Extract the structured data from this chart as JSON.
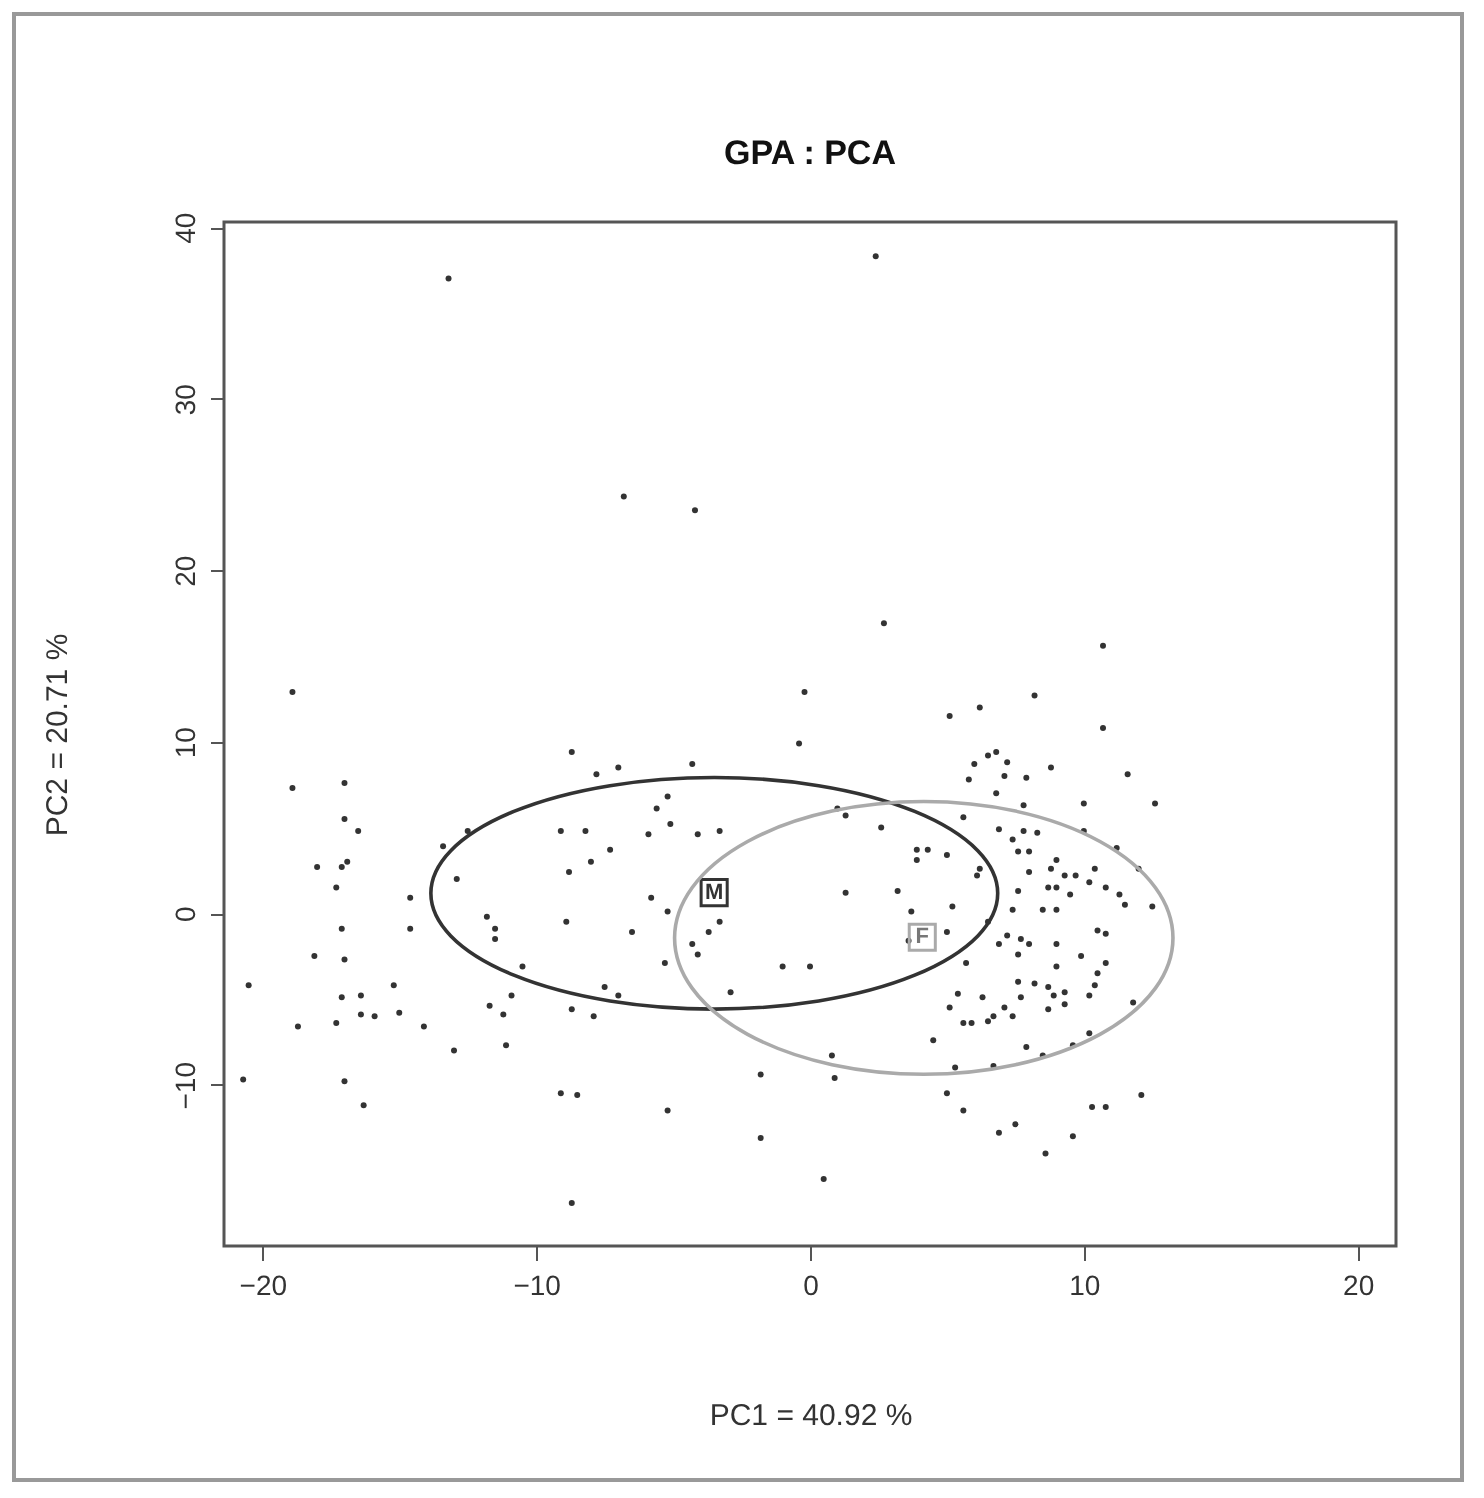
{
  "chart_data": {
    "type": "scatter",
    "title": "GPA : PCA",
    "xlabel": "PC1 = 40.92 %",
    "ylabel": "PC2 = 20.71 %",
    "xlim": [
      -21.4,
      21.4
    ],
    "ylim": [
      -19.4,
      40.3
    ],
    "xticks": [
      -20,
      -10,
      0,
      10,
      20
    ],
    "yticks": [
      -10,
      0,
      10,
      20,
      30,
      40
    ],
    "grid": false,
    "series": [
      {
        "color": "#333333",
        "marker": "circle",
        "x": [
          -13.2,
          -6.8,
          -4.2,
          -18.9,
          2.4,
          2.7,
          10.7,
          -0.2,
          8.2,
          6.2,
          5.1,
          -18.9,
          -17.0,
          -17.0,
          -16.5,
          -18.0,
          -17.1,
          -16.9,
          -17.3,
          -14.6,
          -14.6,
          -17.1,
          -18.1,
          -17.0,
          -20.5,
          -17.1,
          -16.4,
          -15.2,
          -16.4,
          -15.9,
          -15.0,
          -17.3,
          -18.7,
          -14.1,
          -13.0,
          -20.7,
          -17.0,
          -16.3,
          -13.4,
          -12.5,
          -12.9,
          -11.8,
          -11.5,
          -11.5,
          -10.5,
          -11.7,
          -11.2,
          -10.9,
          -11.1,
          -8.7,
          -7.8,
          -7.0,
          -4.3,
          -9.1,
          -8.2,
          -8.8,
          -8.0,
          -7.3,
          -5.6,
          -5.2,
          -5.9,
          -5.1,
          -4.1,
          -3.3,
          -8.9,
          -5.8,
          -5.2,
          -6.5,
          -4.3,
          -3.7,
          -4.1,
          -5.3,
          -7.5,
          -7.0,
          -8.7,
          -7.9,
          -2.9,
          -1.0,
          -3.3,
          -9.1,
          -8.5,
          -5.2,
          -1.8,
          -1.8,
          -8.7,
          -0.4,
          10.7,
          6.0,
          6.5,
          6.8,
          7.2,
          5.8,
          7.1,
          7.9,
          8.8,
          11.6,
          12.6,
          10.0,
          6.8,
          7.8,
          5.6,
          2.6,
          1.0,
          1.3,
          6.9,
          7.4,
          7.8,
          8.3,
          7.6,
          8.0,
          3.9,
          4.3,
          5.0,
          3.9,
          10.0,
          11.2,
          12.0,
          9.0,
          8.8,
          9.3,
          9.7,
          10.4,
          10.2,
          10.8,
          11.3,
          11.5,
          12.5,
          8.7,
          9.0,
          9.5,
          8.0,
          7.6,
          6.1,
          6.2,
          8.5,
          9.0,
          7.4,
          5.2,
          3.2,
          1.3,
          3.7,
          6.5,
          7.2,
          7.7,
          6.9,
          8.0,
          9.0,
          10.5,
          10.8,
          5.0,
          3.6,
          5.7,
          7.6,
          9.0,
          9.9,
          10.8,
          10.5,
          10.4,
          10.2,
          7.6,
          8.2,
          8.7,
          8.9,
          9.3,
          9.3,
          8.7,
          7.7,
          7.1,
          7.4,
          6.7,
          6.3,
          5.4,
          5.1,
          5.6,
          5.9,
          6.5,
          4.5,
          11.8,
          10.2,
          9.6,
          8.5,
          7.9,
          6.7,
          5.3,
          0.8,
          0.9,
          5.0,
          5.6,
          6.9,
          7.5,
          8.6,
          9.6,
          10.3,
          10.8,
          12.1,
          0.5,
          0.0
        ],
        "values": [
          37.0,
          24.3,
          23.5,
          12.9,
          38.3,
          16.9,
          15.6,
          12.9,
          12.7,
          12.0,
          11.5,
          7.3,
          7.6,
          5.5,
          4.8,
          2.7,
          2.7,
          3.0,
          1.5,
          0.9,
          -0.9,
          -0.9,
          -2.5,
          -2.7,
          -4.2,
          -4.9,
          -4.8,
          -4.2,
          -5.9,
          -6.0,
          -5.8,
          -6.4,
          -6.6,
          -6.6,
          -8.0,
          -9.7,
          -9.8,
          -11.2,
          3.9,
          4.8,
          2.0,
          -0.2,
          -0.9,
          -1.5,
          -3.1,
          -5.4,
          -5.9,
          -4.8,
          -7.7,
          9.4,
          8.1,
          8.5,
          8.7,
          4.8,
          4.8,
          2.4,
          3.0,
          3.7,
          6.1,
          6.8,
          4.6,
          5.2,
          4.6,
          4.8,
          -0.5,
          0.9,
          0.1,
          -1.1,
          -1.8,
          -1.1,
          -2.4,
          -2.9,
          -4.3,
          -4.8,
          -5.6,
          -6.0,
          -4.6,
          -3.1,
          -0.5,
          -10.5,
          -10.6,
          -11.5,
          -9.4,
          -13.1,
          -16.9,
          9.9,
          10.8,
          8.7,
          9.2,
          9.4,
          8.8,
          7.8,
          8.0,
          7.9,
          8.5,
          8.1,
          6.4,
          6.4,
          7.0,
          6.3,
          5.6,
          5.0,
          6.1,
          5.7,
          4.9,
          4.3,
          4.8,
          4.7,
          3.6,
          3.6,
          3.7,
          3.7,
          3.4,
          3.1,
          4.8,
          3.8,
          2.6,
          3.1,
          2.6,
          2.2,
          2.2,
          2.6,
          1.8,
          1.5,
          1.1,
          0.5,
          0.4,
          1.5,
          1.5,
          1.1,
          2.4,
          1.3,
          2.2,
          2.6,
          0.2,
          0.2,
          0.2,
          0.4,
          1.3,
          1.2,
          0.1,
          -0.5,
          -1.3,
          -1.5,
          -1.8,
          -1.8,
          -1.8,
          -1.0,
          -1.2,
          -1.1,
          -1.6,
          -2.9,
          -2.4,
          -3.1,
          -2.5,
          -2.9,
          -3.5,
          -4.2,
          -4.8,
          -4.0,
          -4.1,
          -4.3,
          -4.8,
          -4.6,
          -5.3,
          -5.6,
          -4.9,
          -5.5,
          -6.0,
          -6.0,
          -4.9,
          -4.7,
          -5.5,
          -6.4,
          -6.4,
          -6.3,
          -7.4,
          -5.2,
          -7.0,
          -7.7,
          -8.3,
          -7.8,
          -8.9,
          -9.0,
          -8.3,
          -9.6,
          -10.5,
          -11.5,
          -12.8,
          -12.3,
          -14.0,
          -13.0,
          -11.3,
          -11.3,
          -10.6,
          -15.5,
          -3.1
        ]
      },
      {
        "type": "scatter",
        "color": "#333333",
        "marker": "square",
        "x": [
          -3.5
        ],
        "values": [
          1.2
        ]
      },
      {
        "type": "scatter",
        "color": "#aaaaaa",
        "marker": "square",
        "x": [
          4.1
        ],
        "values": [
          -1.4
        ]
      }
    ],
    "annotations": [
      {
        "text": "M",
        "x": -3.5,
        "y": 1.2
      },
      {
        "text": "F",
        "x": 4.1,
        "y": -1.4
      }
    ]
  }
}
